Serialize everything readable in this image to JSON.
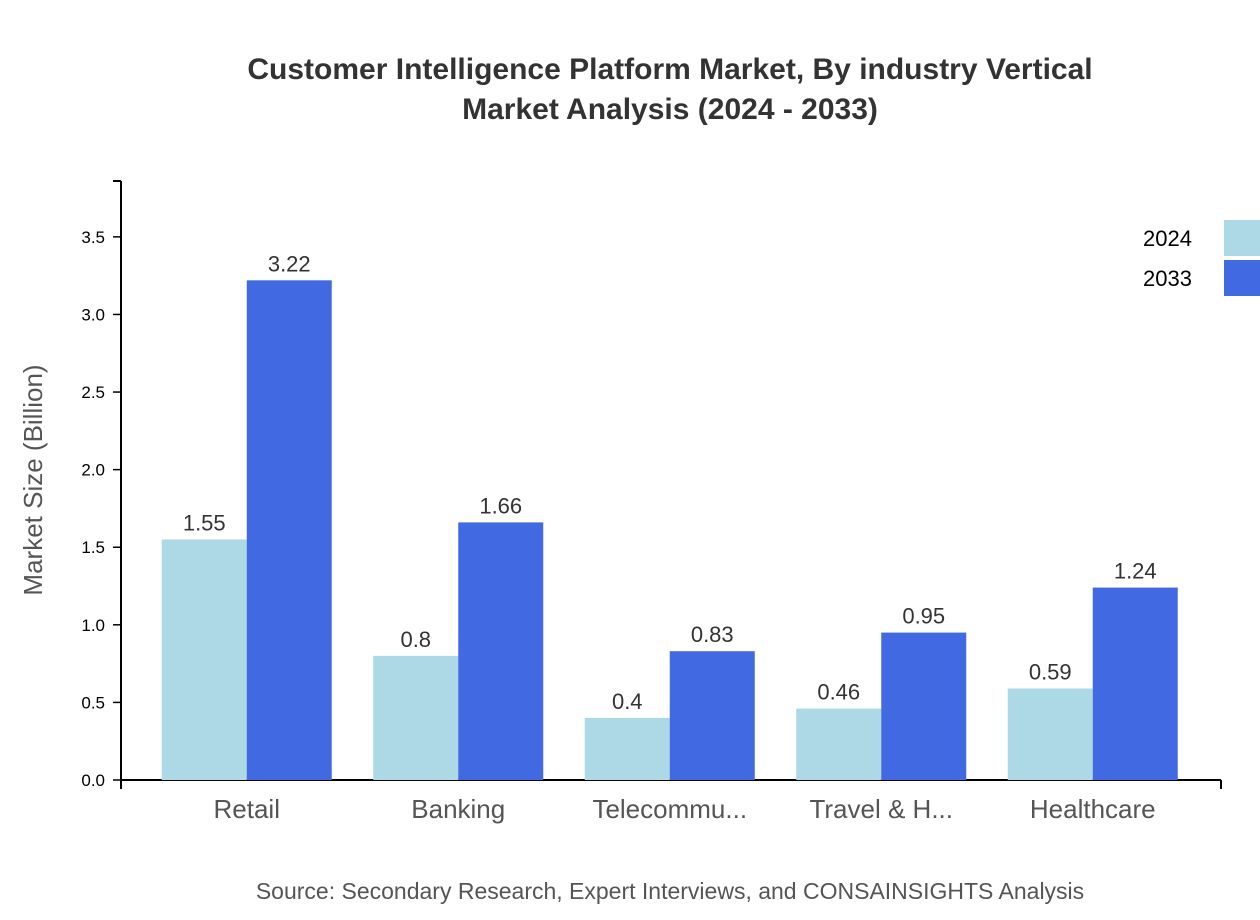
{
  "chart_data": {
    "type": "bar",
    "title": [
      "Customer Intelligence Platform Market, By industry Vertical",
      "Market Analysis (2024 - 2033)"
    ],
    "ylabel": "Market Size (Billion)",
    "xlabel": "",
    "categories": [
      "Retail",
      "Banking",
      "Telecommu...",
      "Travel & H...",
      "Healthcare"
    ],
    "series": [
      {
        "name": "2024",
        "color": "#add8e6",
        "values": [
          1.55,
          0.8,
          0.4,
          0.46,
          0.59
        ]
      },
      {
        "name": "2033",
        "color": "#4169e1",
        "values": [
          3.22,
          1.66,
          0.83,
          0.95,
          1.24
        ]
      }
    ],
    "ylim": [
      0,
      3.86
    ],
    "yticks": [
      "0.0",
      "0.5",
      "1.0",
      "1.5",
      "2.0",
      "2.5",
      "3.0",
      "3.5"
    ],
    "grid": false,
    "legend": "top-right",
    "source": "Source: Secondary Research, Expert Interviews, and CONSAINSIGHTS Analysis"
  }
}
